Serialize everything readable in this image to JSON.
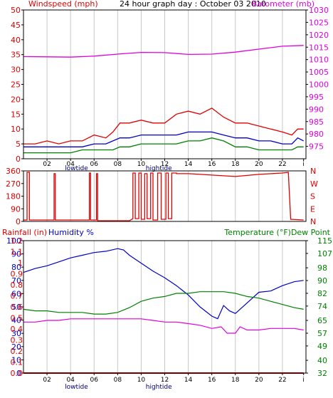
{
  "title": "24 hour graph day : October 03 2010",
  "x_ticks": [
    "02",
    "04",
    "06",
    "08",
    "10",
    "12",
    "14",
    "16",
    "18",
    "20",
    "22",
    "i"
  ],
  "tide_labels": [
    "lowtide",
    "hightide"
  ],
  "colors": {
    "red": "#e00000",
    "magenta": "#e000e0",
    "blue": "#0000c8",
    "green": "#008000",
    "grid": "#c8c8c8"
  },
  "chart_data": [
    {
      "type": "line",
      "title": "24 hour graph day : October 03 2010",
      "left_axis_label": "Windspeed (mph)",
      "right_axis_label": "Barometer (mb)",
      "ylim_left": [
        0,
        50
      ],
      "y_ticks_left": [
        "0",
        "5",
        "10",
        "15",
        "20",
        "25",
        "30",
        "35",
        "40",
        "45",
        "50"
      ],
      "ylim_right": [
        970,
        1030
      ],
      "y_ticks_right": [
        "975",
        "980",
        "985",
        "990",
        "995",
        "1000",
        "1005",
        "1010",
        "1015",
        "1020",
        "1025",
        "1030"
      ],
      "series": [
        {
          "axis": "right",
          "color": "#e000e0",
          "x": [
            0,
            2,
            4,
            6,
            8,
            10,
            12,
            14,
            16,
            18,
            20,
            22,
            23.8
          ],
          "y": [
            1011.2,
            1011.1,
            1011.0,
            1011.4,
            1012.2,
            1012.9,
            1012.8,
            1012.1,
            1012.2,
            1013.0,
            1014.2,
            1015.4,
            1015.7
          ]
        },
        {
          "axis": "left",
          "color": "#e00000",
          "x": [
            0,
            1,
            2,
            3,
            4,
            5,
            6,
            7,
            7.6,
            8.2,
            9,
            10,
            11,
            12,
            13,
            14,
            15,
            16,
            17,
            18,
            19,
            20,
            21,
            22,
            22.8,
            23.3,
            23.8
          ],
          "y": [
            5,
            5,
            6,
            5,
            6,
            6,
            8,
            7,
            9,
            12,
            12,
            13,
            12,
            12,
            15,
            16,
            15,
            17,
            14,
            12,
            12,
            11,
            10,
            9,
            8,
            10,
            10
          ]
        },
        {
          "axis": "left",
          "color": "#0000c8",
          "x": [
            0,
            1,
            2,
            3,
            4,
            5,
            6,
            7,
            7.6,
            8.2,
            9,
            10,
            11,
            12,
            13,
            14,
            15,
            16,
            17,
            18,
            19,
            20,
            21,
            22,
            22.8,
            23.3,
            23.8
          ],
          "y": [
            4,
            4,
            4,
            4,
            4,
            4,
            5,
            5,
            6,
            7,
            7,
            8,
            8,
            8,
            8,
            9,
            9,
            9,
            8,
            7,
            7,
            6,
            6,
            5,
            5,
            7,
            6
          ]
        },
        {
          "axis": "left",
          "color": "#008000",
          "x": [
            0,
            1,
            2,
            3,
            4,
            5,
            6,
            7,
            7.6,
            8.2,
            9,
            10,
            11,
            12,
            13,
            14,
            15,
            16,
            17,
            18,
            19,
            20,
            21,
            22,
            22.8,
            23.3,
            23.8
          ],
          "y": [
            2,
            2,
            2,
            2,
            2,
            3,
            3,
            3,
            3,
            4,
            4,
            5,
            5,
            5,
            5,
            6,
            6,
            7,
            6,
            4,
            4,
            3,
            3,
            3,
            3,
            4,
            4
          ]
        }
      ]
    },
    {
      "type": "line",
      "title": "",
      "y_ticks_left": [
        "0",
        "90",
        "180",
        "270",
        "360"
      ],
      "ylim_left": [
        0,
        360
      ],
      "y_ticks_right": [
        "N",
        "E",
        "S",
        "W",
        "N"
      ],
      "series": [
        {
          "axis": "left",
          "color": "#e00000",
          "x": [
            0,
            0.3,
            0.3,
            0.5,
            0.5,
            2.6,
            2.6,
            2.7,
            2.7,
            5.6,
            5.6,
            5.7,
            5.7,
            6.2,
            6.2,
            6.3,
            6.3,
            9.0,
            9.3,
            9.3,
            9.5,
            9.5,
            9.8,
            9.8,
            10.0,
            10.0,
            10.3,
            10.3,
            10.5,
            10.5,
            10.8,
            10.8,
            11.0,
            11.0,
            11.4,
            11.4,
            11.7,
            11.7,
            12.1,
            12.1,
            12.3,
            12.3,
            12.6,
            12.6,
            13.0,
            13.0,
            14.0,
            16.0,
            18.0,
            20.0,
            22.0,
            22.5,
            22.5,
            22.7,
            22.7,
            23.8
          ],
          "y": [
            10,
            10,
            350,
            350,
            10,
            10,
            340,
            340,
            10,
            10,
            345,
            345,
            10,
            10,
            340,
            340,
            5,
            5,
            20,
            345,
            345,
            20,
            20,
            345,
            345,
            15,
            15,
            340,
            340,
            20,
            20,
            345,
            345,
            10,
            10,
            345,
            345,
            15,
            15,
            345,
            345,
            20,
            20,
            345,
            345,
            340,
            340,
            330,
            320,
            335,
            345,
            350,
            350,
            20,
            15,
            10
          ]
        }
      ]
    },
    {
      "type": "line",
      "title": "",
      "left_axis_labels": [
        "Rainfall (in)",
        "Humidity %"
      ],
      "right_axis_label": "Temperature (°F)Dew Point",
      "ylim_rain": [
        0,
        1.2
      ],
      "y_ticks_rain": [
        "0.0",
        "0.1",
        "0.2",
        "0.3",
        "0.4",
        "0.5",
        "0.6",
        "0.7",
        "0.8",
        "0.9",
        "1",
        "1.1",
        "1.2"
      ],
      "ylim_humidity": [
        0,
        100
      ],
      "y_ticks_humidity": [
        "0",
        "10",
        "20",
        "30",
        "40",
        "50",
        "60",
        "70",
        "80",
        "90",
        "100"
      ],
      "ylim_temp": [
        32,
        115
      ],
      "y_ticks_temp": [
        "32",
        "40",
        "49",
        "57",
        "65",
        "74",
        "82",
        "90",
        "98",
        "107",
        "115"
      ],
      "series": [
        {
          "name": "Humidity %",
          "axis": "humidity",
          "color": "#0000c8",
          "x": [
            0,
            1,
            2,
            3,
            4,
            5,
            6,
            7,
            8,
            8.5,
            9,
            10,
            11,
            12,
            13,
            14,
            15,
            16,
            16.5,
            17,
            17.5,
            18,
            19,
            20,
            21,
            22,
            23,
            23.8
          ],
          "y": [
            76,
            79,
            81,
            84,
            87,
            89,
            91,
            92,
            94,
            93,
            89,
            83,
            77,
            72,
            66,
            59,
            50,
            43,
            41,
            51,
            47,
            45,
            53,
            61,
            62,
            66,
            69,
            70
          ]
        },
        {
          "name": "Temperature",
          "axis": "temp",
          "color": "#008000",
          "x": [
            0,
            1,
            2,
            3,
            4,
            5,
            6,
            7,
            8,
            9,
            10,
            11,
            12,
            13,
            14,
            15,
            16,
            17,
            18,
            19,
            20,
            21,
            22,
            23,
            23.8
          ],
          "y": [
            72,
            71,
            71,
            70,
            70,
            70,
            69,
            69,
            70,
            73,
            77,
            79,
            80,
            82,
            82,
            83,
            83,
            83,
            82,
            80,
            79,
            77,
            75,
            73,
            72
          ]
        },
        {
          "name": "Dew Point",
          "axis": "temp",
          "color": "#e000e0",
          "x": [
            0,
            1,
            2,
            3,
            4,
            5,
            6,
            7,
            8,
            9,
            10,
            11,
            12,
            13,
            14,
            15,
            16,
            16.8,
            17.3,
            18,
            18.4,
            19,
            20,
            21,
            22,
            23,
            23.8
          ],
          "y": [
            64,
            64,
            65,
            65,
            66,
            66,
            66,
            66,
            66,
            66,
            66,
            65,
            64,
            64,
            63,
            62,
            60,
            61,
            57,
            57,
            61,
            59,
            59,
            60,
            60,
            60,
            59
          ]
        },
        {
          "name": "Rainfall (in)",
          "axis": "rain",
          "color": "#e00000",
          "x": [
            0,
            23.8
          ],
          "y": [
            0,
            0
          ]
        }
      ]
    }
  ]
}
